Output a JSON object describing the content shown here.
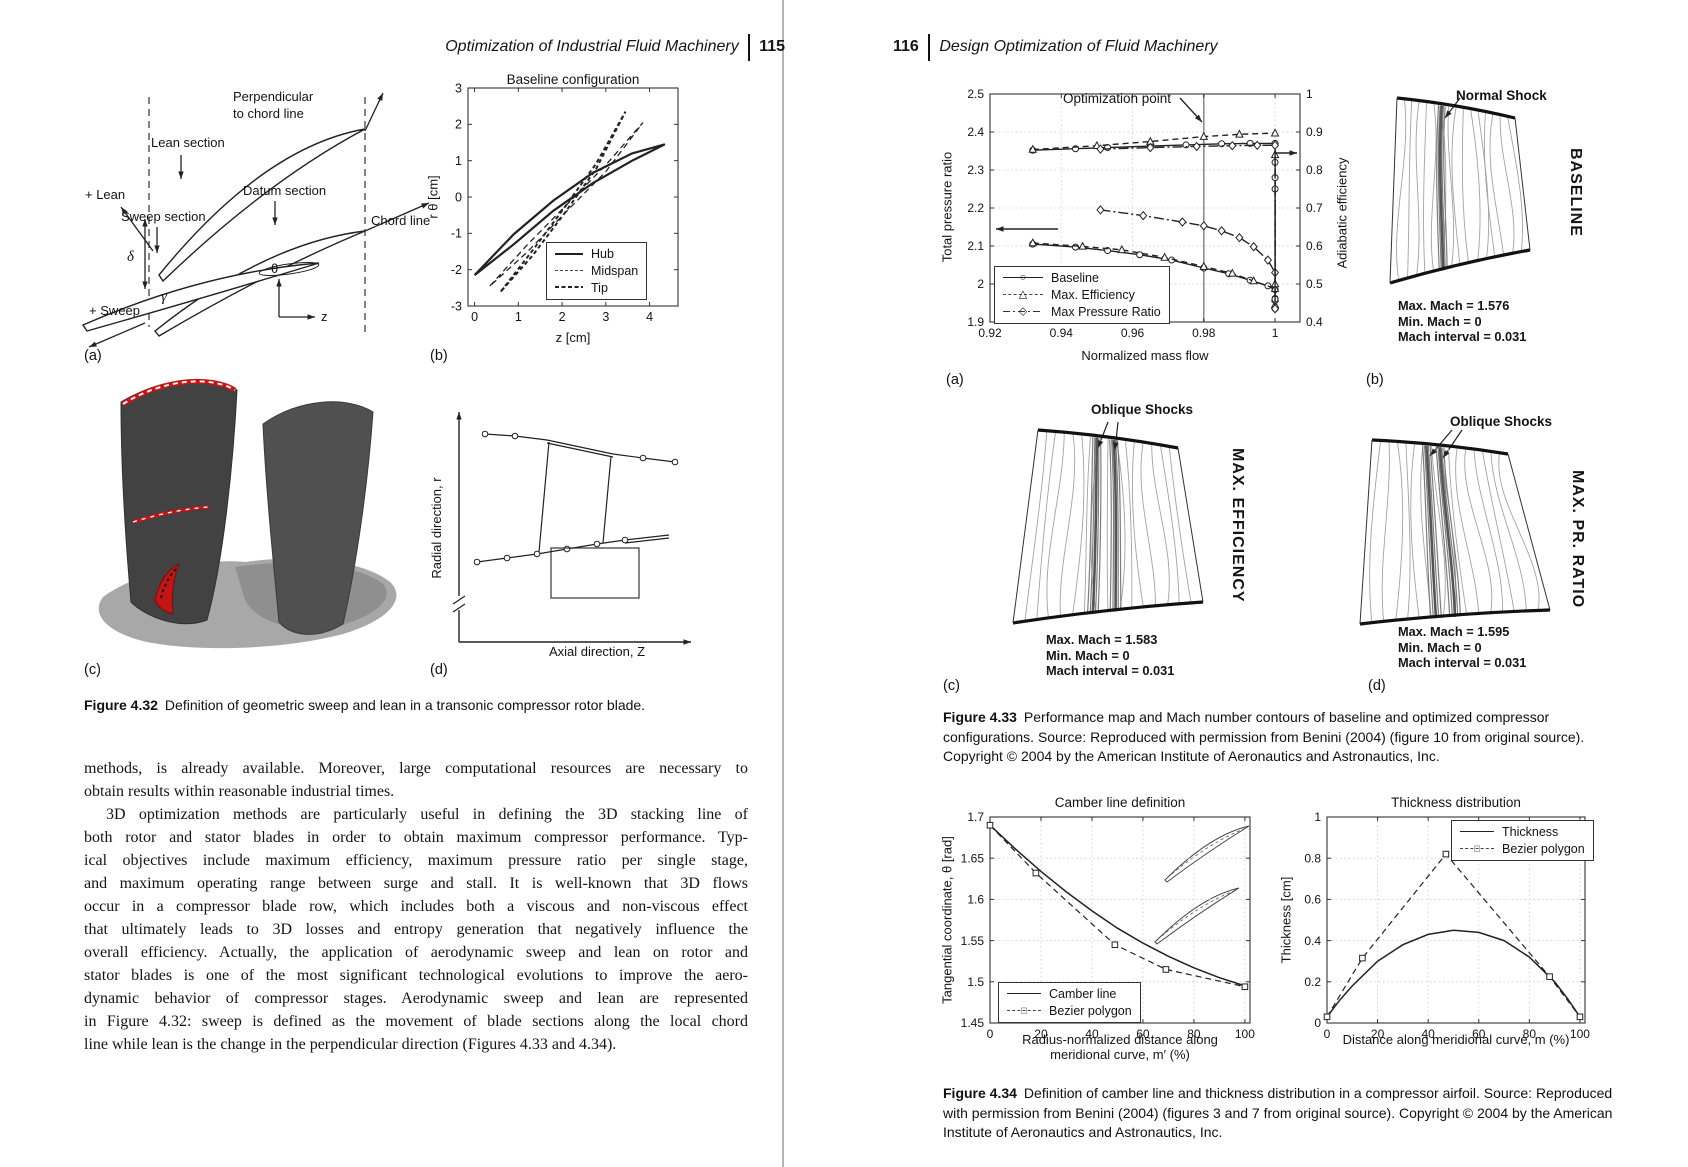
{
  "left_page": {
    "header": {
      "title": "Optimization of Industrial Fluid Machinery",
      "page_number": "115"
    },
    "figure_4_32": {
      "panel_labels": [
        "(a)",
        "(b)",
        "(c)",
        "(d)"
      ],
      "panel_a": {
        "perpendicular_line1": "Perpendicular",
        "perpendicular_line2": "to chord line",
        "lean_section": "Lean section",
        "plus_lean": "+ Lean",
        "datum_section": "Datum section",
        "sweep_section": "Sweep section",
        "chord_line": "Chord line",
        "delta": "δ",
        "gamma": "γ",
        "theta": "θ",
        "z_axis": "z",
        "plus_sweep": "+ Sweep"
      },
      "panel_d": {
        "ylabel": "Radial direction, r",
        "xlabel": "Axial direction, Z"
      },
      "caption_label": "Figure 4.32",
      "caption_text": "Definition of geometric sweep and lean in a transonic compressor rotor blade."
    },
    "body": {
      "para1_lines": [
        "methods, is already available. Moreover, large computational resources are necessary to",
        "obtain results within reasonable industrial times."
      ],
      "para2_lines": [
        "3D optimization methods are particularly useful in defining the 3D stacking line of",
        "both rotor and stator blades in order to obtain maximum compressor performance. Typ-",
        "ical objectives include maximum efficiency, maximum pressure ratio per single stage,",
        "and maximum operating range between surge and stall. It is well-known that 3D flows",
        "occur in a compressor blade row, which includes both a viscous and non-viscous effect",
        "that ultimately leads to 3D losses and entropy generation that negatively influence the",
        "overall efficiency. Actually, the application of aerodynamic sweep and lean on rotor and",
        "stator blades is one of the most significant technological evolutions to improve the aero-",
        "dynamic behavior of compressor stages. Aerodynamic sweep and lean are represented",
        "in Figure 4.32: sweep is defined as the movement of blade sections along the local chord",
        "line while lean is the change in the perpendicular direction (Figures 4.33 and 4.34)."
      ]
    }
  },
  "right_page": {
    "header": {
      "page_number": "116",
      "title": "Design Optimization of Fluid Machinery"
    },
    "figure_4_33": {
      "panel_labels": [
        "(a)",
        "(b)",
        "(c)",
        "(d)"
      ],
      "caption_label": "Figure 4.33",
      "caption_text": "Performance map and Mach number contours of baseline and optimized compressor configurations. Source: Reproduced with permission from Benini (2004) (figure 10 from original source). Copyright © 2004 by the American Institute of Aeronautics and Astronautics, Inc."
    },
    "figure_4_34": {
      "caption_label": "Figure 4.34",
      "caption_text": "Definition of camber line and thickness distribution in a compressor airfoil. Source: Reproduced with permission from Benini (2004) (figures 3 and 7 from original source). Copyright © 2004 by the American Institute of Aeronautics and Astronautics, Inc."
    }
  },
  "chart_data": [
    {
      "id": "figure-4.32(b)",
      "type": "line",
      "title": "Baseline configuration",
      "xlabel": "z [cm]",
      "ylabel": "r θ [cm]",
      "xlim": [
        -0.15,
        4.65
      ],
      "ylim": [
        -3,
        3
      ],
      "xticks": [
        0,
        1,
        2,
        3,
        4
      ],
      "xtick_labels": [
        "0",
        "1",
        "2",
        "3",
        "4"
      ],
      "yticks": [
        -3,
        -2,
        -1,
        0,
        1,
        2,
        3
      ],
      "ytick_labels": [
        "-3",
        "-2",
        "-1",
        "0",
        "1",
        "2",
        "3"
      ],
      "grid": false,
      "legend": [
        "Hub",
        "Midspan",
        "Tip"
      ],
      "legend_position": "lower right",
      "series": [
        {
          "name": "Hub",
          "style": "solid",
          "width": 2.2,
          "marker": "none",
          "closed": true,
          "x": [
            0.0,
            0.9,
            1.8,
            2.7,
            3.6,
            4.35,
            3.6,
            2.7,
            1.8,
            0.9,
            0.0
          ],
          "y": [
            -2.15,
            -1.02,
            -0.1,
            0.66,
            1.2,
            1.45,
            1.0,
            0.38,
            -0.38,
            -1.3,
            -2.15
          ]
        },
        {
          "name": "Midspan",
          "style": "dashed",
          "width": 1.3,
          "marker": "none",
          "closed": true,
          "x": [
            0.35,
            1.2,
            2.1,
            3.0,
            3.85,
            3.0,
            2.1,
            1.2,
            0.35
          ],
          "y": [
            -2.45,
            -1.32,
            -0.22,
            0.88,
            2.05,
            0.7,
            -0.4,
            -1.52,
            -2.45
          ]
        },
        {
          "name": "Tip",
          "style": "dense-dash",
          "width": 2.0,
          "marker": "none",
          "closed": true,
          "x": [
            0.6,
            1.32,
            2.05,
            2.78,
            3.45,
            2.78,
            2.05,
            1.32,
            0.6
          ],
          "y": [
            -2.6,
            -1.48,
            -0.3,
            0.92,
            2.35,
            0.78,
            -0.46,
            -1.62,
            -2.6
          ]
        }
      ]
    },
    {
      "id": "figure-4.33(a)",
      "type": "line",
      "xlabel": "Normalized mass flow",
      "ylabel_left": "Total pressure ratio",
      "ylabel_right": "Adiabatic efficiency",
      "xlim": [
        0.92,
        1.007
      ],
      "ylim_left": [
        1.9,
        2.5
      ],
      "ylim_right": [
        0.4,
        1.0
      ],
      "xticks": [
        0.92,
        0.94,
        0.96,
        0.98,
        1
      ],
      "xtick_labels": [
        "0.92",
        "0.94",
        "0.96",
        "0.98",
        "1"
      ],
      "yticks_left": [
        1.9,
        2,
        2.1,
        2.2,
        2.3,
        2.4,
        2.5
      ],
      "ytick_labels_left": [
        "1.9",
        "2",
        "2.1",
        "2.2",
        "2.3",
        "2.4",
        "2.5"
      ],
      "yticks_right": [
        0.4,
        0.5,
        0.6,
        0.7,
        0.8,
        0.9,
        1
      ],
      "ytick_labels_right": [
        "0.4",
        "0.5",
        "0.6",
        "0.7",
        "0.8",
        "0.9",
        "1"
      ],
      "grid": true,
      "annotation": "Optimization point",
      "optimization_point_x": 0.98,
      "legend": [
        "Baseline",
        "Max. Efficiency",
        "Max Pressure Ratio"
      ],
      "legend_position": "lower left",
      "series": [
        {
          "name": "Baseline",
          "axis": "left",
          "style": "solid",
          "marker": "circle",
          "x": [
            0.932,
            0.944,
            0.953,
            0.962,
            0.971,
            0.98,
            0.987,
            0.993,
            0.998,
            1.0,
            1.0,
            1.0
          ],
          "y": [
            2.105,
            2.097,
            2.088,
            2.077,
            2.063,
            2.042,
            2.027,
            2.01,
            1.995,
            1.985,
            1.962,
            1.935
          ]
        },
        {
          "name": "Max. Efficiency",
          "axis": "left",
          "style": "dashed",
          "marker": "triangle",
          "x": [
            0.932,
            0.946,
            0.957,
            0.969,
            0.98,
            0.988,
            0.994,
            1.0,
            1.0
          ],
          "y": [
            2.108,
            2.099,
            2.09,
            2.07,
            2.046,
            2.028,
            2.008,
            1.988,
            1.945
          ]
        },
        {
          "name": "Max Pressure Ratio",
          "axis": "left",
          "style": "dashdot",
          "marker": "diamond",
          "x": [
            0.951,
            0.963,
            0.974,
            0.98,
            0.985,
            0.99,
            0.994,
            0.998,
            1.0,
            1.0
          ],
          "y": [
            2.195,
            2.18,
            2.163,
            2.153,
            2.14,
            2.122,
            2.098,
            2.063,
            2.03,
            1.955
          ]
        },
        {
          "name": "Baseline (efficiency)",
          "axis": "right",
          "style": "solid",
          "marker": "circle",
          "x": [
            0.932,
            0.944,
            0.953,
            0.965,
            0.975,
            0.985,
            0.993,
            1.0,
            1.0,
            1.0,
            1.0,
            1.0
          ],
          "y": [
            0.852,
            0.856,
            0.859,
            0.863,
            0.866,
            0.869,
            0.87,
            0.87,
            0.82,
            0.78,
            0.75,
            0.46
          ]
        },
        {
          "name": "Max. Efficiency (efficiency)",
          "axis": "right",
          "style": "dashed",
          "marker": "triangle",
          "x": [
            0.932,
            0.95,
            0.965,
            0.98,
            0.99,
            1.0,
            1.0,
            1.0
          ],
          "y": [
            0.854,
            0.864,
            0.875,
            0.888,
            0.894,
            0.897,
            0.84,
            0.5
          ]
        },
        {
          "name": "Max Pressure Ratio (efficiency)",
          "axis": "right",
          "style": "dashdot",
          "marker": "diamond",
          "x": [
            0.951,
            0.965,
            0.978,
            0.988,
            0.995,
            1.0,
            1.0
          ],
          "y": [
            0.855,
            0.859,
            0.862,
            0.864,
            0.865,
            0.865,
            0.435
          ]
        }
      ]
    },
    {
      "id": "figure-4.33(b)",
      "type": "contour",
      "config_label": "BASELINE",
      "shock_annotation": "Normal Shock",
      "stats": [
        "Max. Mach = 1.576",
        "Min. Mach = 0",
        "Mach interval = 0.031"
      ]
    },
    {
      "id": "figure-4.33(c)",
      "type": "contour",
      "config_label": "MAX. EFFICIENCY",
      "shock_annotation": "Oblique Shocks",
      "stats": [
        "Max. Mach = 1.583",
        "Min. Mach = 0",
        "Mach interval = 0.031"
      ]
    },
    {
      "id": "figure-4.33(d)",
      "type": "contour",
      "config_label": "MAX. PR. RATIO",
      "shock_annotation": "Oblique Shocks",
      "stats": [
        "Max. Mach = 1.595",
        "Min. Mach = 0",
        "Mach interval = 0.031"
      ]
    },
    {
      "id": "figure-4.34(left)",
      "type": "line",
      "title": "Camber line definition",
      "xlabel": "Radius-normalized distance along meridional curve, m′ (%)",
      "ylabel": "Tangential coordinate, θ [rad]",
      "xlim": [
        0,
        102
      ],
      "ylim": [
        1.45,
        1.7
      ],
      "xticks": [
        0,
        20,
        40,
        60,
        80,
        100
      ],
      "xtick_labels": [
        "0",
        "20",
        "40",
        "60",
        "80",
        "100"
      ],
      "yticks": [
        1.45,
        1.5,
        1.55,
        1.6,
        1.65,
        1.7
      ],
      "ytick_labels": [
        "1.45",
        "1.5",
        "1.55",
        "1.6",
        "1.65",
        "1.7"
      ],
      "grid": true,
      "legend": [
        "Camber line",
        "Bezier polygon"
      ],
      "legend_position": "lower left",
      "series": [
        {
          "name": "Camber line",
          "style": "solid",
          "width": 1.5,
          "marker": "none",
          "x": [
            0,
            10,
            20,
            30,
            40,
            50,
            60,
            70,
            80,
            90,
            100
          ],
          "y": [
            1.69,
            1.661,
            1.634,
            1.609,
            1.586,
            1.565,
            1.547,
            1.531,
            1.517,
            1.505,
            1.495
          ]
        },
        {
          "name": "Bezier polygon",
          "style": "dashed",
          "width": 1.2,
          "marker": "square",
          "x": [
            0,
            18,
            49,
            69,
            100
          ],
          "y": [
            1.69,
            1.632,
            1.545,
            1.515,
            1.494
          ]
        }
      ]
    },
    {
      "id": "figure-4.34(right)",
      "type": "line",
      "title": "Thickness distribution",
      "xlabel": "Distance along meridional curve, m (%)",
      "ylabel": "Thickness [cm]",
      "xlim": [
        0,
        102
      ],
      "ylim": [
        0,
        1
      ],
      "xticks": [
        0,
        20,
        40,
        60,
        80,
        100
      ],
      "xtick_labels": [
        "0",
        "20",
        "40",
        "60",
        "80",
        "100"
      ],
      "yticks": [
        0,
        0.2,
        0.4,
        0.6,
        0.8,
        1
      ],
      "ytick_labels": [
        "0",
        "0.2",
        "0.4",
        "0.6",
        "0.8",
        "1"
      ],
      "grid": true,
      "legend": [
        "Thickness",
        "Bezier polygon"
      ],
      "legend_position": "upper right",
      "series": [
        {
          "name": "Thickness",
          "style": "solid",
          "width": 1.5,
          "marker": "none",
          "x": [
            0,
            5,
            10,
            20,
            30,
            40,
            50,
            60,
            70,
            80,
            90,
            95,
            100
          ],
          "y": [
            0.03,
            0.11,
            0.18,
            0.3,
            0.38,
            0.43,
            0.45,
            0.44,
            0.4,
            0.32,
            0.2,
            0.12,
            0.03
          ]
        },
        {
          "name": "Bezier polygon",
          "style": "dashed",
          "width": 1.2,
          "marker": "square",
          "x": [
            0,
            14,
            47,
            88,
            100
          ],
          "y": [
            0.03,
            0.315,
            0.82,
            0.225,
            0.03
          ]
        }
      ]
    }
  ]
}
